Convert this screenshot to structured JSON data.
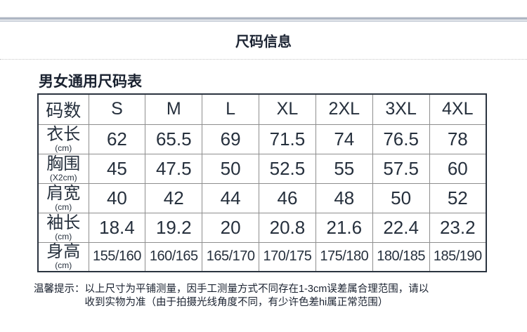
{
  "page": {
    "title": "尺码信息",
    "section_heading": "男女通用尺码表"
  },
  "table": {
    "columns": [
      "码数",
      "S",
      "M",
      "L",
      "XL",
      "2XL",
      "3XL",
      "4XL"
    ],
    "rows": [
      {
        "label": "衣长",
        "unit": "(cm)",
        "values": [
          "62",
          "65.5",
          "69",
          "71.5",
          "74",
          "76.5",
          "78"
        ]
      },
      {
        "label": "胸围",
        "unit": "(X2cm)",
        "values": [
          "45",
          "47.5",
          "50",
          "52.5",
          "55",
          "57.5",
          "60"
        ]
      },
      {
        "label": "肩宽",
        "unit": "(cm)",
        "values": [
          "40",
          "42",
          "44",
          "46",
          "48",
          "50",
          "52"
        ]
      },
      {
        "label": "袖长",
        "unit": "(cm)",
        "values": [
          "18.4",
          "19.2",
          "20",
          "20.8",
          "21.6",
          "22.4",
          "23.2"
        ]
      },
      {
        "label": "身高",
        "unit": "(cm)",
        "values": [
          "155/160",
          "160/165",
          "165/170",
          "170/175",
          "175/180",
          "180/185",
          "185/190"
        ]
      }
    ]
  },
  "note": {
    "label": "温馨提示：",
    "line1": "以上尺寸为平铺测量，因手工测量方式不同存在1-3cm误差属合理范围，请以",
    "line2": "收到实物为准（由于拍摄光线角度不同，有少许色差hi属正常范围）"
  },
  "colors": {
    "text": "#26303d",
    "title_text": "#1d2534",
    "table_outer_border": "#2b3440",
    "table_inner_border": "#8e8e8e",
    "top_band_dark": "#aeb6c3",
    "top_band_light": "#c9cfd9",
    "dotted_separator": "#c6c6c6"
  }
}
